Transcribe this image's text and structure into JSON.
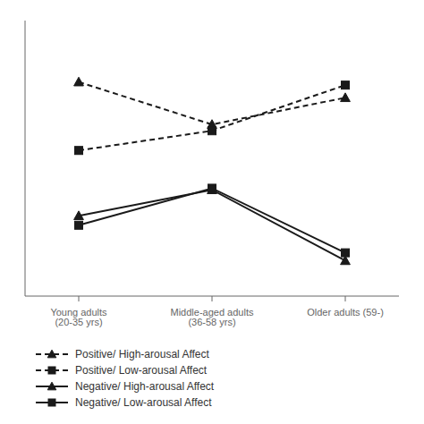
{
  "chart_data": {
    "type": "line",
    "categories": [
      "Young adults (20-35 yrs)",
      "Middle-aged adults (36-58 yrs)",
      "Older adults (59-)"
    ],
    "series": [
      {
        "name": "Positive/ High-arousal Affect",
        "values": [
          3.82,
          3.28,
          3.62
        ],
        "marker": "triangle",
        "line_style": "dashed",
        "color": "#1a1a1a"
      },
      {
        "name": "Positive/ Low-arousal Affect",
        "values": [
          2.95,
          3.2,
          3.78
        ],
        "marker": "square",
        "line_style": "dashed",
        "color": "#1a1a1a"
      },
      {
        "name": "Negative/ High-arousal Affect",
        "values": [
          2.12,
          2.45,
          1.55
        ],
        "marker": "triangle",
        "line_style": "solid",
        "color": "#1a1a1a"
      },
      {
        "name": "Negative/ Low-arousal Affect",
        "values": [
          2.0,
          2.47,
          1.65
        ],
        "marker": "square",
        "line_style": "solid",
        "color": "#1a1a1a"
      }
    ],
    "ylim": [
      1.1,
      4.6
    ],
    "tick_labels": "x",
    "grid": false,
    "legend": "lower left"
  }
}
